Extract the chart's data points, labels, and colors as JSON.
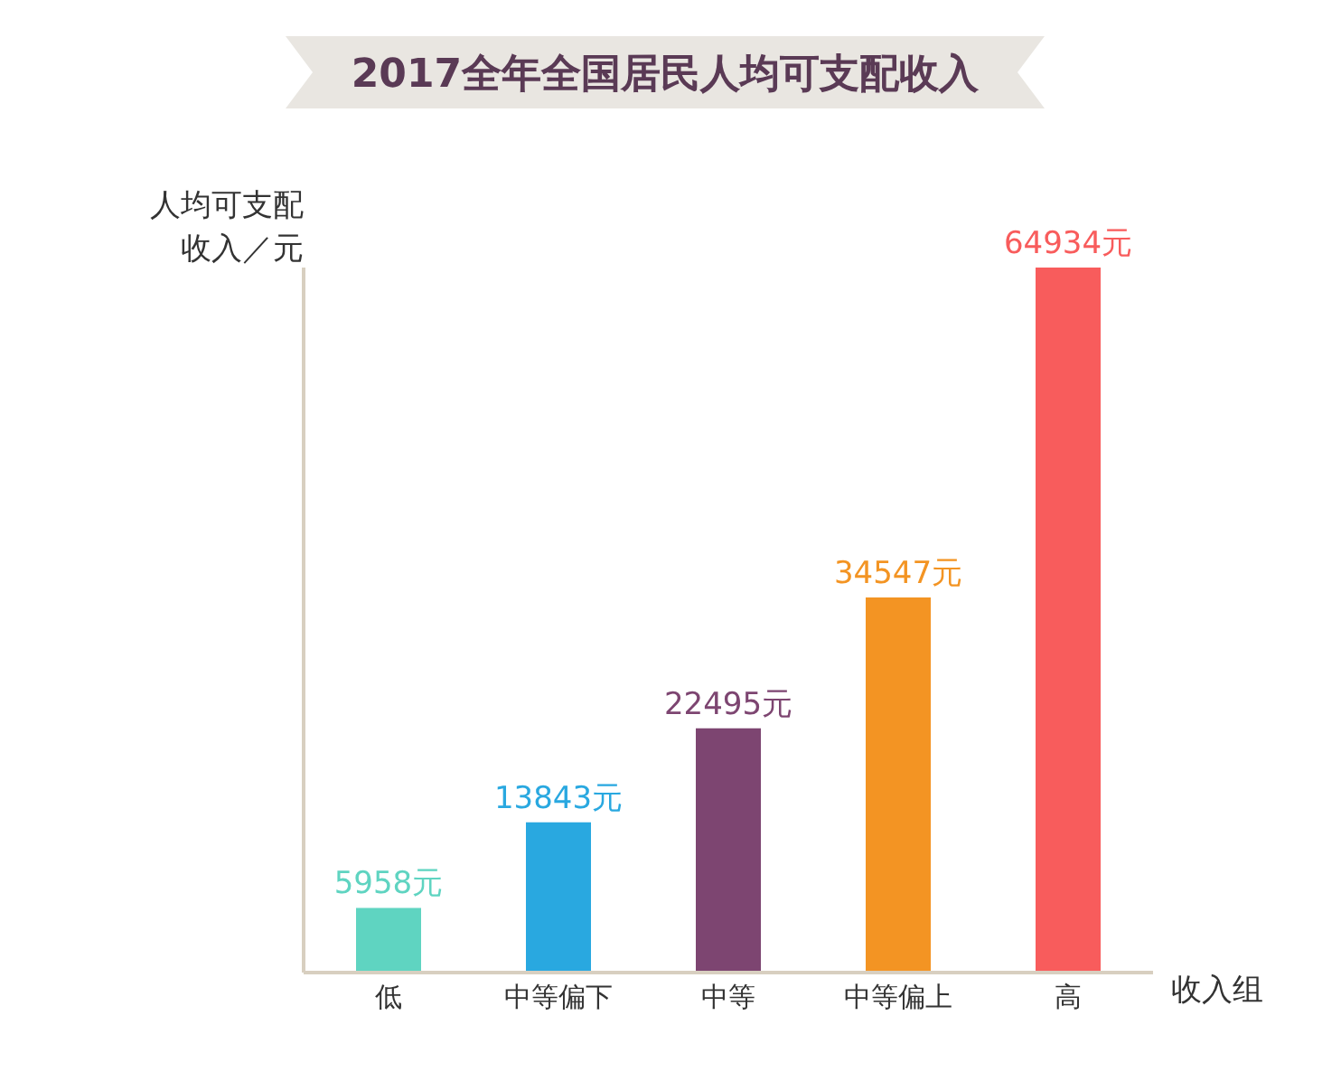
{
  "chart_data": {
    "type": "bar",
    "title": "2017全年全国居民人均可支配收入",
    "ylabel": "人均可支配收入／元",
    "xlabel": "收入组",
    "categories": [
      "低",
      "中等偏下",
      "中等",
      "中等偏上",
      "高"
    ],
    "values": [
      5958,
      13843,
      22495,
      34547,
      64934
    ],
    "colors": [
      "#5fd4c1",
      "#29a8e0",
      "#7d4571",
      "#f39423",
      "#f85c5c"
    ],
    "value_labels": [
      "5958元",
      "13843元",
      "22495元",
      "34547元",
      "64934元"
    ],
    "tick_labels": "x"
  }
}
